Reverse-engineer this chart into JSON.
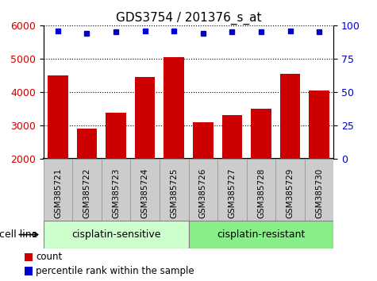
{
  "title": "GDS3754 / 201376_s_at",
  "categories": [
    "GSM385721",
    "GSM385722",
    "GSM385723",
    "GSM385724",
    "GSM385725",
    "GSM385726",
    "GSM385727",
    "GSM385728",
    "GSM385729",
    "GSM385730"
  ],
  "counts": [
    4500,
    2900,
    3380,
    4450,
    5050,
    3100,
    3300,
    3500,
    4550,
    4050
  ],
  "percentile_ranks": [
    96,
    94,
    95,
    96,
    96,
    94,
    95,
    95,
    96,
    95
  ],
  "bar_color": "#cc0000",
  "dot_color": "#0000cc",
  "ylim_left": [
    2000,
    6000
  ],
  "ylim_right": [
    0,
    100
  ],
  "yticks_left": [
    2000,
    3000,
    4000,
    5000,
    6000
  ],
  "yticks_right": [
    0,
    25,
    50,
    75,
    100
  ],
  "group1_label": "cisplatin-sensitive",
  "group1_count": 5,
  "group2_label": "cisplatin-resistant",
  "group2_count": 5,
  "group1_color": "#ccffcc",
  "group2_color": "#88ee88",
  "cell_line_label": "cell line",
  "legend_count_label": "count",
  "legend_pct_label": "percentile rank within the sample",
  "bar_width": 0.7,
  "tick_bg_color": "#cccccc",
  "tick_edge_color": "#999999",
  "fig_width": 4.75,
  "fig_height": 3.54,
  "dpi": 100
}
